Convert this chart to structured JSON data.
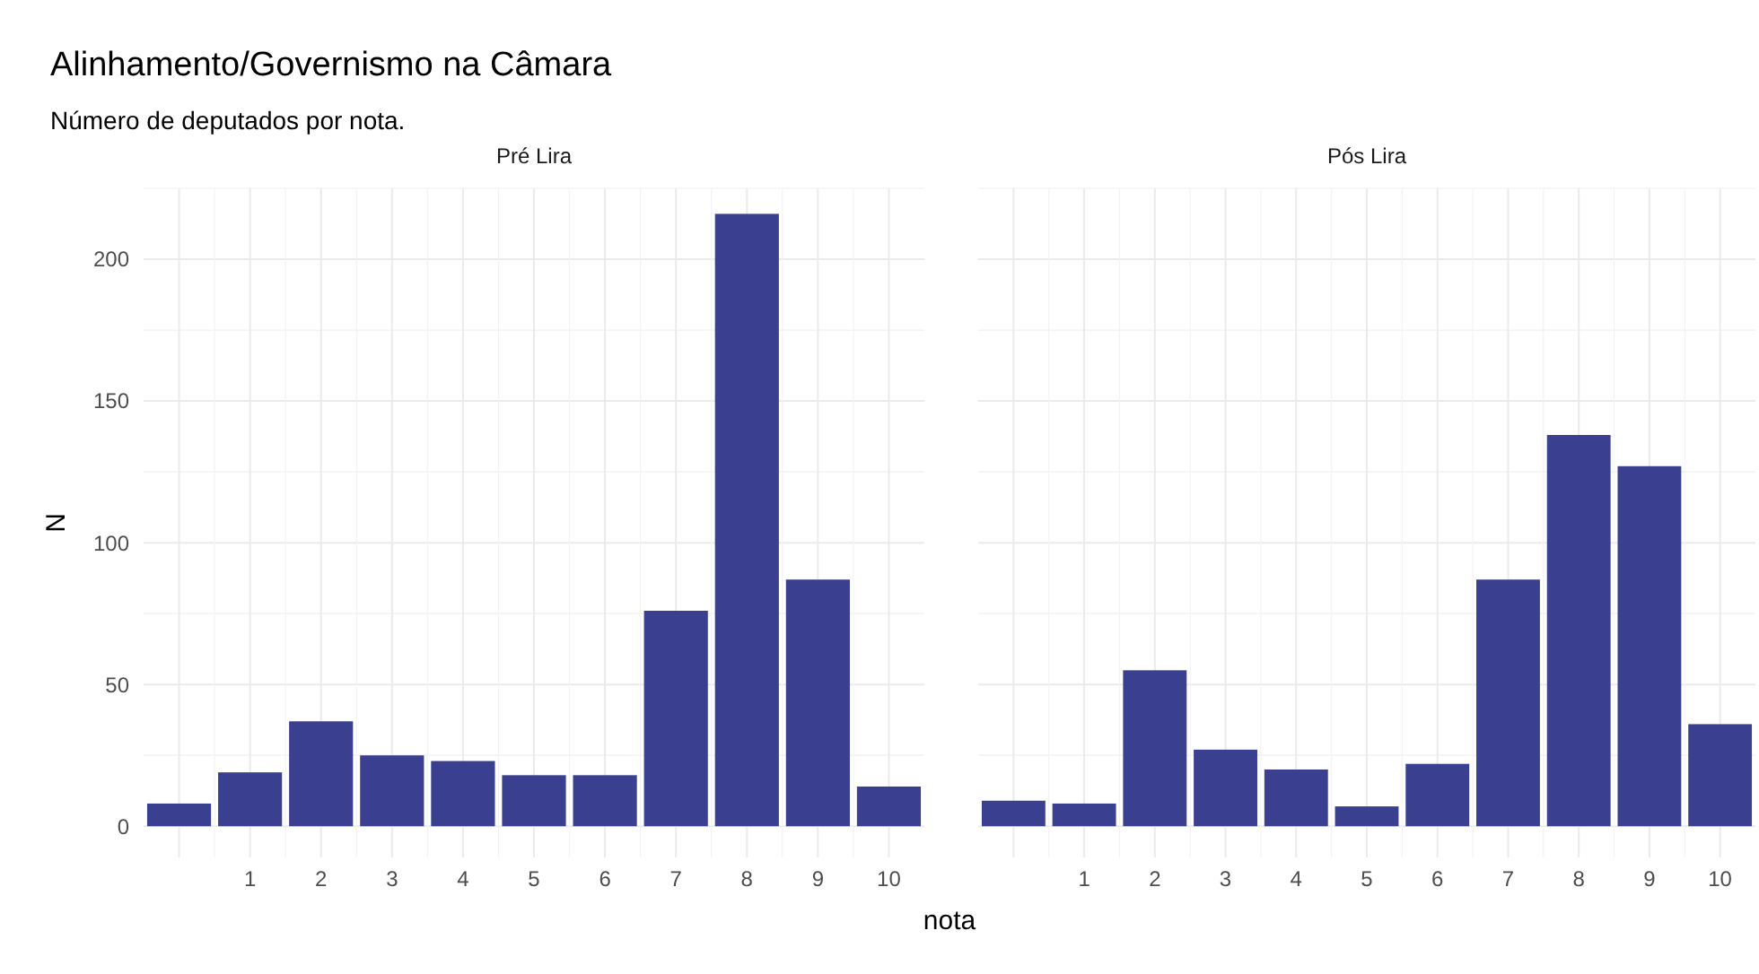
{
  "chart_data": [
    {
      "type": "bar",
      "title": "Alinhamento/Governismo na Câmara",
      "subtitle": "Número de deputados por nota.",
      "xlabel": "nota",
      "ylabel": "N",
      "categories": [
        null,
        "1",
        "2",
        "3",
        "4",
        "5",
        "6",
        "7",
        "8",
        "9",
        "10"
      ],
      "series": [
        {
          "name": "Pré Lira",
          "color": "#3b3f8f",
          "values": [
            8,
            19,
            37,
            25,
            23,
            18,
            18,
            76,
            216,
            87,
            14
          ]
        }
      ],
      "ylim": [
        -11,
        225
      ],
      "yticks": [
        0,
        50,
        100,
        150,
        200
      ],
      "grid": true
    },
    {
      "type": "bar",
      "categories": [
        null,
        "1",
        "2",
        "3",
        "4",
        "5",
        "6",
        "7",
        "8",
        "9",
        "10"
      ],
      "series": [
        {
          "name": "Pós Lira",
          "color": "#3b3f8f",
          "values": [
            9,
            8,
            55,
            27,
            20,
            7,
            22,
            87,
            138,
            127,
            36
          ]
        }
      ],
      "ylim": [
        -11,
        225
      ],
      "yticks": [
        0,
        50,
        100,
        150,
        200
      ],
      "grid": true,
      "tick_labels": "x"
    }
  ]
}
